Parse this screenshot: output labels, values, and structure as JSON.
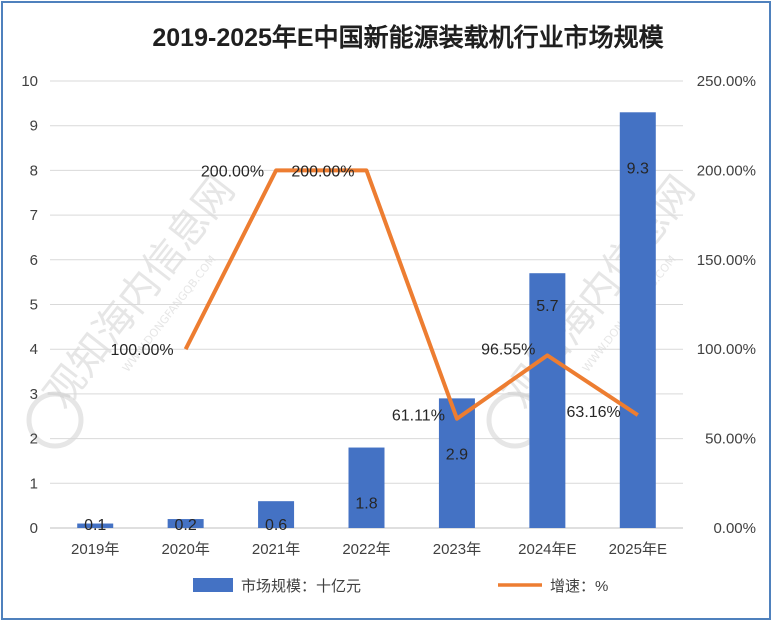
{
  "chart_data": {
    "type": "bar",
    "title": "2019-2025年E中国新能源装载机行业市场规模",
    "categories": [
      "2019年",
      "2020年",
      "2021年",
      "2022年",
      "2023年",
      "2024年E",
      "2025年E"
    ],
    "series": [
      {
        "name": "市场规模：十亿元",
        "type": "bar",
        "axis": "left",
        "values": [
          0.1,
          0.2,
          0.6,
          1.8,
          2.9,
          5.7,
          9.3
        ],
        "labels": [
          "0.1",
          "0.2",
          "0.6",
          "1.8",
          "2.9",
          "5.7",
          "9.3"
        ]
      },
      {
        "name": "增速：%",
        "type": "line",
        "axis": "right",
        "values": [
          null,
          100.0,
          200.0,
          200.0,
          61.11,
          96.55,
          63.16
        ],
        "labels": [
          "",
          "100.00%",
          "200.00%",
          "200.00%",
          "61.11%",
          "96.55%",
          "63.16%"
        ]
      }
    ],
    "y_left": {
      "min": 0,
      "max": 10,
      "step": 1,
      "ticks": [
        "0",
        "1",
        "2",
        "3",
        "4",
        "5",
        "6",
        "7",
        "8",
        "9",
        "10"
      ]
    },
    "y_right": {
      "min": 0,
      "max": 250,
      "step": 50,
      "ticks": [
        "0.00%",
        "50.00%",
        "100.00%",
        "150.00%",
        "200.00%",
        "250.00%"
      ]
    },
    "grid": true,
    "legend_position": "bottom"
  },
  "colors": {
    "bar": "#4472c4",
    "line": "#ed7d31",
    "grid": "#d9d9d9",
    "border": "#4f81bd"
  },
  "watermark": {
    "text": "观知海内信息网",
    "subtext": "WWW.DONGFANGQB.COM"
  }
}
